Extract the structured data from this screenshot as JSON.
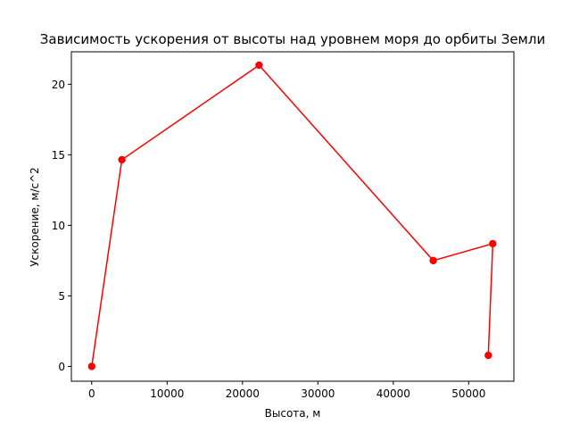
{
  "chart_data": {
    "type": "line",
    "title": "Зависимость ускорения от высоты над уровнем моря до орбиты Земли",
    "xlabel": "Высота, м",
    "ylabel": "Ускорение, м/с^2",
    "xlim": [
      -2700,
      56000
    ],
    "ylim": [
      -1.05,
      22.3
    ],
    "xticks": [
      0,
      10000,
      20000,
      30000,
      40000,
      50000
    ],
    "yticks": [
      0,
      5,
      10,
      15,
      20
    ],
    "grid": false,
    "series": [
      {
        "color": "#ff0000",
        "marker": "circle",
        "x": [
          0,
          4000,
          22200,
          45300,
          53200,
          52600
        ],
        "y": [
          0,
          14.65,
          21.35,
          7.5,
          8.7,
          0.78
        ]
      }
    ]
  }
}
